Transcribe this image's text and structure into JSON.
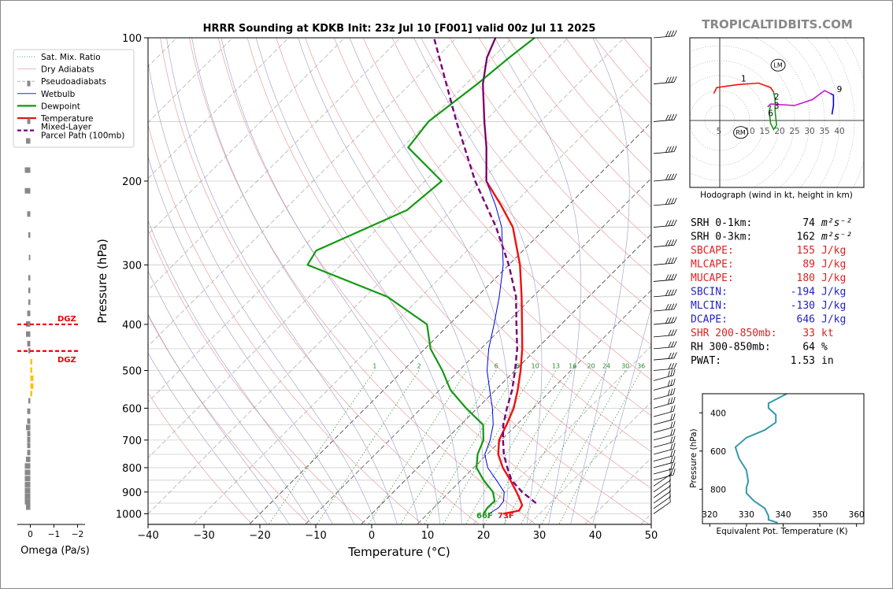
{
  "title": "HRRR Sounding at KDKB Init: 23z Jul 10 [F001] valid 00z Jul 11 2025",
  "watermark": "TROPICALTIDBITS.COM",
  "skewt": {
    "xlabel": "Temperature (°C)",
    "ylabel": "Pressure (hPa)",
    "xticks": [
      -40,
      -30,
      -20,
      -10,
      0,
      10,
      20,
      30,
      40,
      50
    ],
    "yticks": [
      100,
      200,
      300,
      400,
      500,
      600,
      700,
      800,
      900,
      1000
    ],
    "surface_temp_label": "73F",
    "surface_dew_label": "66F",
    "mixing_ratio_labels": [
      "1",
      "2",
      "6",
      "8",
      "10",
      "13",
      "16",
      "20",
      "24",
      "30",
      "36"
    ],
    "legend": [
      {
        "label": "Sat. Mix. Ratio",
        "color": "#2a8a2a",
        "style": "dotted"
      },
      {
        "label": "Dry Adiabats",
        "color": "#e8a0a0",
        "style": "solid"
      },
      {
        "label": "Pseudoadiabats",
        "color": "#aaaaaa",
        "style": "dashed"
      },
      {
        "label": "Wetbulb",
        "color": "#0000dd",
        "style": "solid"
      },
      {
        "label": "Dewpoint",
        "color": "#119911",
        "style": "solid"
      },
      {
        "label": "Temperature",
        "color": "#ee1111",
        "style": "solid"
      },
      {
        "label": "Mixed-Layer\nParcel Path (100mb)",
        "color": "#770077",
        "style": "dashed"
      }
    ]
  },
  "omega": {
    "xlabel": "Omega (Pa/s)",
    "xticks": [
      "0",
      "−1",
      "−2"
    ],
    "dgz_label": "DGZ",
    "dgz_top_hpa": 400,
    "dgz_bottom_hpa": 455
  },
  "hodograph": {
    "caption": "Hodograph (wind in kt, height in km)",
    "xticks": [
      "5",
      "10",
      "15",
      "20",
      "25",
      "30",
      "35",
      "40"
    ],
    "lm_label": "LM",
    "rm_label": "RM",
    "height_labels": [
      "1",
      "2",
      "3",
      "6",
      "9"
    ]
  },
  "indices": [
    {
      "label": "SRH 0-1km:",
      "value": "74",
      "unit": "m²s⁻²",
      "color": "#000000"
    },
    {
      "label": "SRH 0-3km:",
      "value": "162",
      "unit": "m²s⁻²",
      "color": "#000000"
    },
    {
      "label": "SBCAPE:",
      "value": "155",
      "unit": "J/kg",
      "color": "#dd2222"
    },
    {
      "label": "MLCAPE:",
      "value": "89",
      "unit": "J/kg",
      "color": "#dd2222"
    },
    {
      "label": "MUCAPE:",
      "value": "180",
      "unit": "J/kg",
      "color": "#dd2222"
    },
    {
      "label": "SBCIN:",
      "value": "-194",
      "unit": "J/kg",
      "color": "#2222cc"
    },
    {
      "label": "MLCIN:",
      "value": "-130",
      "unit": "J/kg",
      "color": "#2222cc"
    },
    {
      "label": "DCAPE:",
      "value": "646",
      "unit": "J/kg",
      "color": "#2222cc"
    },
    {
      "label": "SHR 200-850mb:",
      "value": "33",
      "unit": "kt",
      "color": "#dd2222"
    },
    {
      "label": "RH 300-850mb:",
      "value": "64",
      "unit": "%",
      "color": "#000000"
    },
    {
      "label": "PWAT:",
      "value": "1.53",
      "unit": "in",
      "color": "#000000"
    }
  ],
  "theta_e": {
    "xlabel": "Equivalent Pot. Temperature (K)",
    "ylabel": "Pressure (hPa)",
    "xticks": [
      320,
      330,
      340,
      350,
      360
    ],
    "yticks": [
      400,
      600,
      800
    ]
  },
  "chart_data": [
    {
      "type": "line",
      "title": "HRRR Sounding at KDKB Init: 23z Jul 10 [F001] valid 00z Jul 11 2025",
      "xlabel": "Temperature (°C)",
      "ylabel": "Pressure (hPa)",
      "xlim": [
        -40,
        50
      ],
      "ylim": [
        1050,
        100
      ],
      "series": [
        {
          "name": "Temperature",
          "color": "#ee1111",
          "points": [
            [
              1000,
              23.5
            ],
            [
              985,
              25.8
            ],
            [
              960,
              25.4
            ],
            [
              925,
              23.5
            ],
            [
              900,
              22
            ],
            [
              850,
              18.8
            ],
            [
              800,
              15.2
            ],
            [
              750,
              12
            ],
            [
              700,
              9.6
            ],
            [
              650,
              8.2
            ],
            [
              600,
              6.5
            ],
            [
              550,
              4
            ],
            [
              500,
              1
            ],
            [
              450,
              -2.6
            ],
            [
              400,
              -7
            ],
            [
              350,
              -12
            ],
            [
              300,
              -18
            ],
            [
              250,
              -26
            ],
            [
              225,
              -32
            ],
            [
              200,
              -39
            ],
            [
              170,
              -45
            ],
            [
              150,
              -50
            ],
            [
              125,
              -57
            ],
            [
              110,
              -61
            ],
            [
              100,
              -63
            ]
          ]
        },
        {
          "name": "Dewpoint",
          "color": "#119911",
          "points": [
            [
              1000,
              20
            ],
            [
              970,
              19.6
            ],
            [
              940,
              19.7
            ],
            [
              900,
              17.8
            ],
            [
              850,
              14
            ],
            [
              800,
              10.5
            ],
            [
              750,
              8.3
            ],
            [
              700,
              6.8
            ],
            [
              650,
              4
            ],
            [
              600,
              -2
            ],
            [
              550,
              -8
            ],
            [
              500,
              -13
            ],
            [
              450,
              -19
            ],
            [
              400,
              -24
            ],
            [
              350,
              -36
            ],
            [
              300,
              -56
            ],
            [
              280,
              -57
            ],
            [
              230,
              -48
            ],
            [
              200,
              -47
            ],
            [
              170,
              -59
            ],
            [
              150,
              -60
            ],
            [
              125,
              -58
            ],
            [
              110,
              -57
            ],
            [
              100,
              -56
            ]
          ]
        },
        {
          "name": "Wetbulb",
          "color": "#0000dd",
          "points": [
            [
              1000,
              21
            ],
            [
              970,
              21.6
            ],
            [
              940,
              21.3
            ],
            [
              900,
              19.8
            ],
            [
              850,
              16.3
            ],
            [
              800,
              12.5
            ],
            [
              750,
              9.6
            ],
            [
              700,
              8
            ],
            [
              650,
              5.8
            ],
            [
              600,
              2.7
            ],
            [
              550,
              -1
            ],
            [
              500,
              -5
            ],
            [
              450,
              -8.6
            ],
            [
              400,
              -12
            ],
            [
              350,
              -16
            ],
            [
              300,
              -21
            ],
            [
              250,
              -28
            ],
            [
              225,
              -33
            ],
            [
              200,
              -39
            ],
            [
              170,
              -45
            ],
            [
              150,
              -50
            ],
            [
              125,
              -57
            ],
            [
              110,
              -61
            ],
            [
              100,
              -63
            ]
          ]
        },
        {
          "name": "Mixed-Layer Parcel Path (100mb)",
          "color": "#770077",
          "points": [
            [
              950,
              27.5
            ],
            [
              900,
              23
            ],
            [
              850,
              19
            ],
            [
              800,
              16
            ],
            [
              750,
              13
            ],
            [
              700,
              10.3
            ],
            [
              650,
              7.6
            ],
            [
              600,
              5.3
            ],
            [
              550,
              3
            ],
            [
              500,
              0
            ],
            [
              450,
              -3.5
            ],
            [
              400,
              -8
            ],
            [
              350,
              -13
            ],
            [
              300,
              -20
            ],
            [
              250,
              -29
            ],
            [
              200,
              -41
            ],
            [
              150,
              -55
            ],
            [
              100,
              -74
            ]
          ]
        }
      ],
      "legend_placement": "top-left"
    },
    {
      "type": "bar",
      "xlabel": "Omega (Pa/s)",
      "orientation": "horizontal",
      "xlim": [
        0.5,
        -2
      ],
      "bars": [
        [
          125,
          0.1
        ],
        [
          150,
          0.1
        ],
        [
          165,
          0.15
        ],
        [
          190,
          0.2
        ],
        [
          210,
          0.2
        ],
        [
          235,
          0.1
        ],
        [
          260,
          0.05
        ],
        [
          290,
          0.03
        ],
        [
          320,
          0.05
        ],
        [
          340,
          0.05
        ],
        [
          360,
          0.05
        ],
        [
          380,
          0.1
        ],
        [
          400,
          0.15
        ],
        [
          420,
          0.15
        ],
        [
          440,
          0.1
        ],
        [
          455,
          0.05
        ],
        [
          480,
          -0.05
        ],
        [
          500,
          -0.05
        ],
        [
          520,
          -0.1
        ],
        [
          540,
          -0.1
        ],
        [
          560,
          -0.05
        ],
        [
          580,
          0.05
        ],
        [
          610,
          0.1
        ],
        [
          640,
          0.1
        ],
        [
          660,
          0.15
        ],
        [
          680,
          0.1
        ],
        [
          700,
          0.1
        ],
        [
          720,
          0.1
        ],
        [
          745,
          0.1
        ],
        [
          770,
          0.15
        ],
        [
          795,
          0.2
        ],
        [
          820,
          0.2
        ],
        [
          845,
          0.2
        ],
        [
          870,
          0.2
        ],
        [
          895,
          0.2
        ],
        [
          920,
          0.2
        ],
        [
          945,
          0.2
        ],
        [
          970,
          0.15
        ]
      ]
    },
    {
      "type": "line",
      "title": "Hodograph (wind in kt, height in km)",
      "xlim": [
        -3,
        43
      ],
      "ylim": [
        -20,
        25
      ],
      "series": [
        {
          "name": "0-1 km",
          "color": "#ee1111",
          "points": [
            [
              -2,
              9
            ],
            [
              -1,
              11
            ],
            [
              6,
              12
            ],
            [
              13,
              12.5
            ],
            [
              17,
              11
            ],
            [
              18,
              9.5
            ]
          ]
        },
        {
          "name": "1-3 km",
          "color": "#119911",
          "points": [
            [
              18,
              9.5
            ],
            [
              18.5,
              7
            ],
            [
              18.5,
              3
            ],
            [
              19,
              -1.5
            ],
            [
              18,
              -3
            ],
            [
              17,
              -1
            ],
            [
              16.5,
              3
            ],
            [
              17,
              5
            ]
          ]
        },
        {
          "name": "3-6 km",
          "color": "#cc11cc",
          "points": [
            [
              16,
              4.5
            ],
            [
              17,
              5.5
            ],
            [
              25,
              5
            ],
            [
              31,
              7
            ],
            [
              35,
              10
            ],
            [
              37,
              9
            ]
          ]
        },
        {
          "name": "6-9 km",
          "color": "#0000dd",
          "points": [
            [
              37,
              9
            ],
            [
              38,
              8.5
            ],
            [
              38,
              5
            ],
            [
              37.5,
              2
            ]
          ]
        }
      ]
    },
    {
      "type": "line",
      "xlabel": "Equivalent Pot. Temperature (K)",
      "ylabel": "Pressure (hPa)",
      "xlim": [
        318,
        362
      ],
      "ylim": [
        980,
        300
      ],
      "series": [
        {
          "name": "Theta-E",
          "color": "#3399aa",
          "points": [
            [
              975,
              338.5
            ],
            [
              960,
              336
            ],
            [
              940,
              336
            ],
            [
              900,
              335
            ],
            [
              860,
              332
            ],
            [
              820,
              330
            ],
            [
              790,
              330
            ],
            [
              760,
              330.5
            ],
            [
              700,
              330
            ],
            [
              640,
              328
            ],
            [
              580,
              327
            ],
            [
              530,
              330
            ],
            [
              490,
              335
            ],
            [
              450,
              338
            ],
            [
              410,
              338
            ],
            [
              375,
              336
            ],
            [
              350,
              336
            ],
            [
              320,
              339
            ],
            [
              300,
              341
            ]
          ]
        }
      ]
    }
  ]
}
